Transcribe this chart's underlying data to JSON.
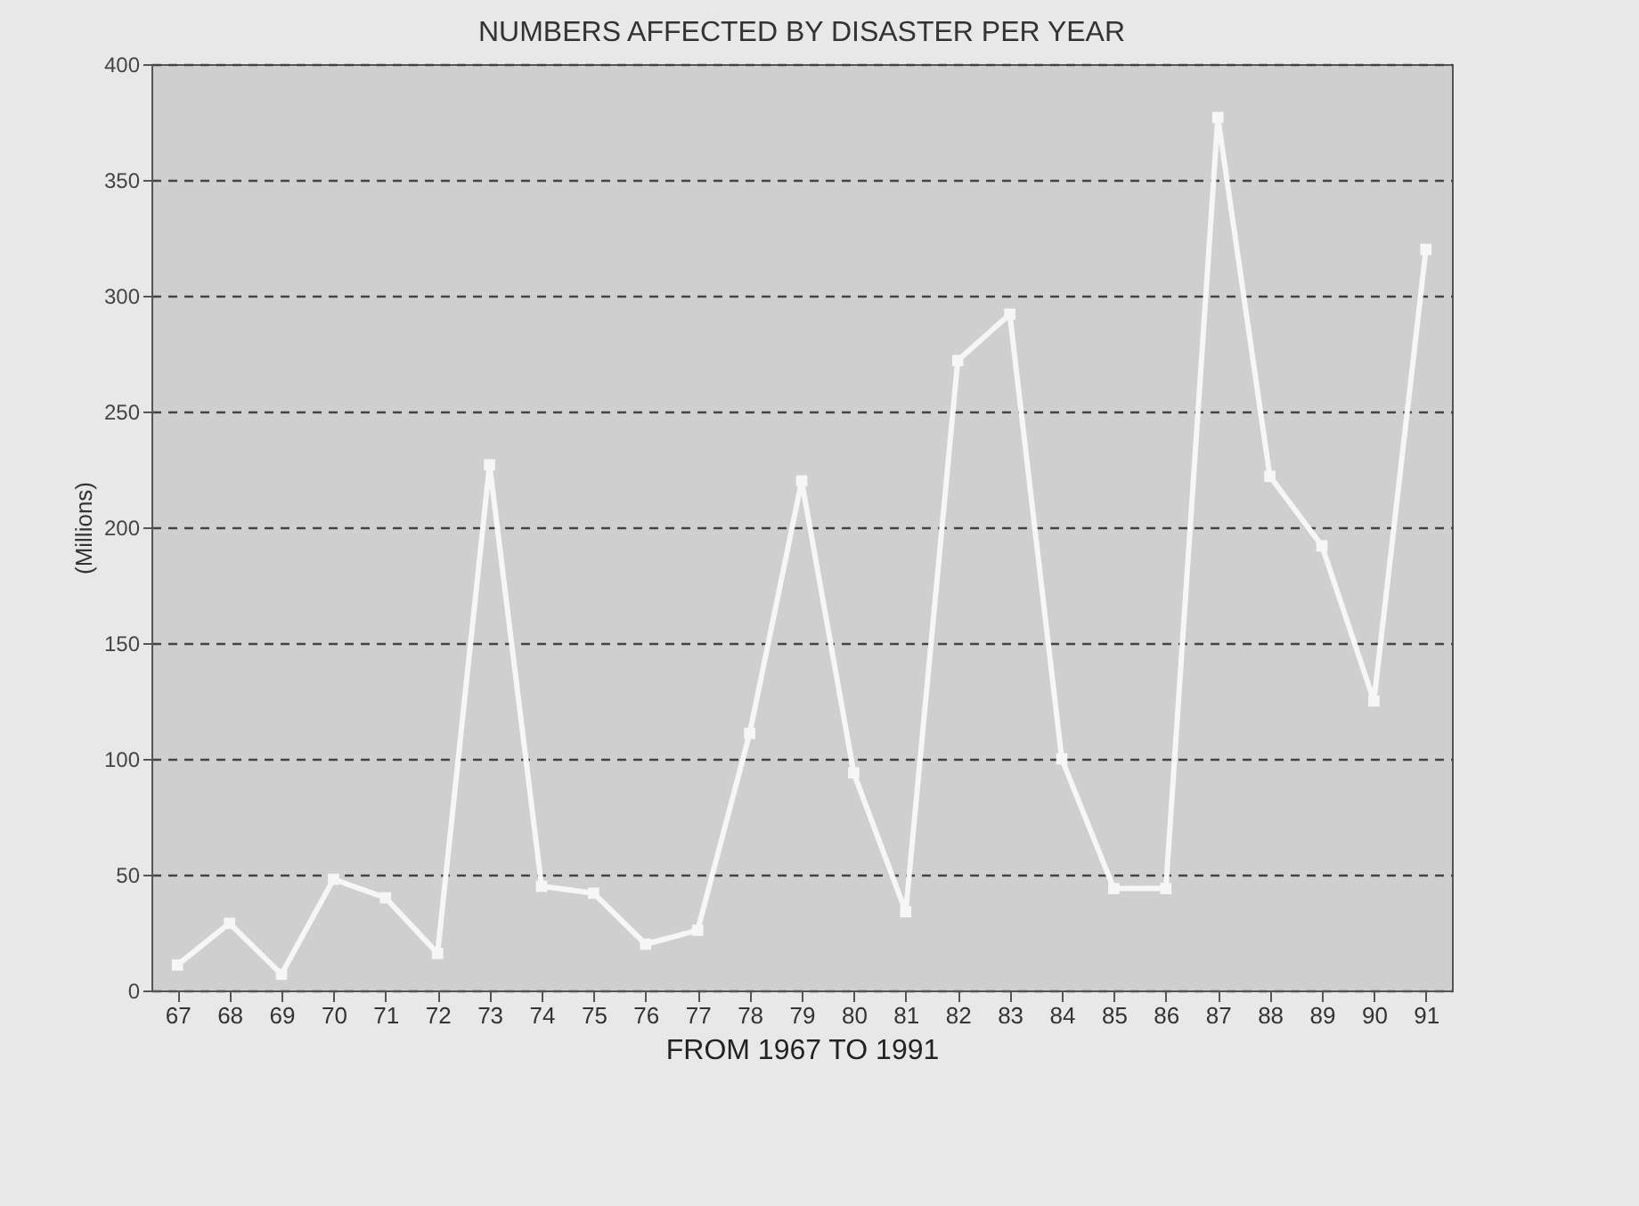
{
  "chart_data": {
    "type": "line",
    "title": "NUMBERS AFFECTED BY DISASTER PER YEAR",
    "xlabel": "FROM 1967 TO 1991",
    "ylabel": "(Millions)",
    "categories": [
      "67",
      "68",
      "69",
      "70",
      "71",
      "72",
      "73",
      "74",
      "75",
      "76",
      "77",
      "78",
      "79",
      "80",
      "81",
      "82",
      "83",
      "84",
      "85",
      "86",
      "87",
      "88",
      "89",
      "90",
      "91"
    ],
    "series": [
      {
        "color": "#f6f6f6",
        "values": [
          11,
          29,
          7,
          48,
          40,
          16,
          227,
          45,
          42,
          20,
          26,
          111,
          220,
          94,
          34,
          272,
          292,
          100,
          44,
          44,
          377,
          222,
          192,
          125,
          320
        ]
      }
    ],
    "ylim": [
      0,
      400
    ],
    "yticks": [
      0,
      50,
      100,
      150,
      200,
      250,
      300,
      350,
      400
    ],
    "grid": "y",
    "marker": "square",
    "line_style": "solid"
  }
}
